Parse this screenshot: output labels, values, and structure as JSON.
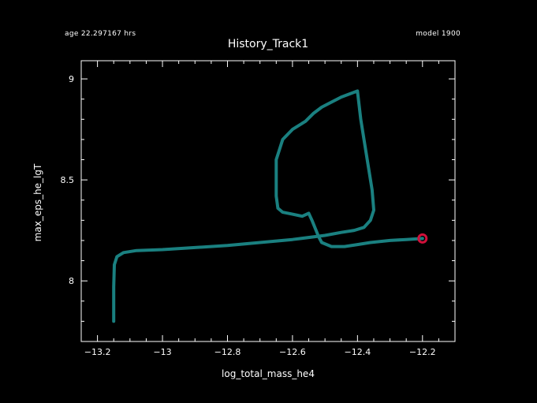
{
  "header": {
    "age_text": "age 22.297167 hrs",
    "model_text": "model 1900"
  },
  "colors": {
    "background": "#000000",
    "axes": "#ffffff",
    "track": "#1a8080",
    "marker": "#d0103a"
  },
  "chart_data": {
    "type": "line",
    "title": "History_Track1",
    "xlabel": "log_total_mass_he4",
    "ylabel": "max_eps_he_lgT",
    "xlim": [
      -13.25,
      -12.1
    ],
    "ylim": [
      7.7,
      9.09
    ],
    "x_ticks": [
      -13.2,
      -13,
      -12.8,
      -12.6,
      -12.4,
      -12.2
    ],
    "x_tick_labels": [
      "-13.2",
      "-13",
      "-12.8",
      "-12.6",
      "-12.4",
      "-12.2"
    ],
    "y_ticks": [
      8,
      8.5,
      9
    ],
    "y_tick_labels": [
      "8",
      "8.5",
      "9"
    ],
    "grid": false,
    "series": [
      {
        "x": [
          -13.15,
          -13.15,
          -13.148,
          -13.14,
          -13.12,
          -13.08,
          -13.0,
          -12.9,
          -12.8,
          -12.7,
          -12.6,
          -12.5,
          -12.45,
          -12.41,
          -12.38,
          -12.36,
          -12.35,
          -12.355,
          -12.37,
          -12.39,
          -12.4,
          -12.45,
          -12.51,
          -12.535,
          -12.56,
          -12.6,
          -12.63,
          -12.64,
          -12.65,
          -12.65,
          -12.645,
          -12.63,
          -12.6,
          -12.57,
          -12.55,
          -12.54,
          -12.53,
          -12.52,
          -12.51,
          -12.48,
          -12.44,
          -12.4,
          -12.36,
          -12.3,
          -12.25,
          -12.2
        ],
        "y": [
          7.8,
          7.97,
          8.08,
          8.12,
          8.14,
          8.15,
          8.155,
          8.165,
          8.175,
          8.19,
          8.205,
          8.225,
          8.24,
          8.25,
          8.265,
          8.3,
          8.35,
          8.45,
          8.6,
          8.8,
          8.94,
          8.91,
          8.86,
          8.83,
          8.79,
          8.75,
          8.7,
          8.65,
          8.6,
          8.42,
          8.36,
          8.34,
          8.33,
          8.32,
          8.335,
          8.3,
          8.26,
          8.22,
          8.19,
          8.17,
          8.17,
          8.18,
          8.19,
          8.2,
          8.205,
          8.21
        ]
      }
    ],
    "end_marker": {
      "x": -12.2,
      "y": 8.21
    }
  }
}
